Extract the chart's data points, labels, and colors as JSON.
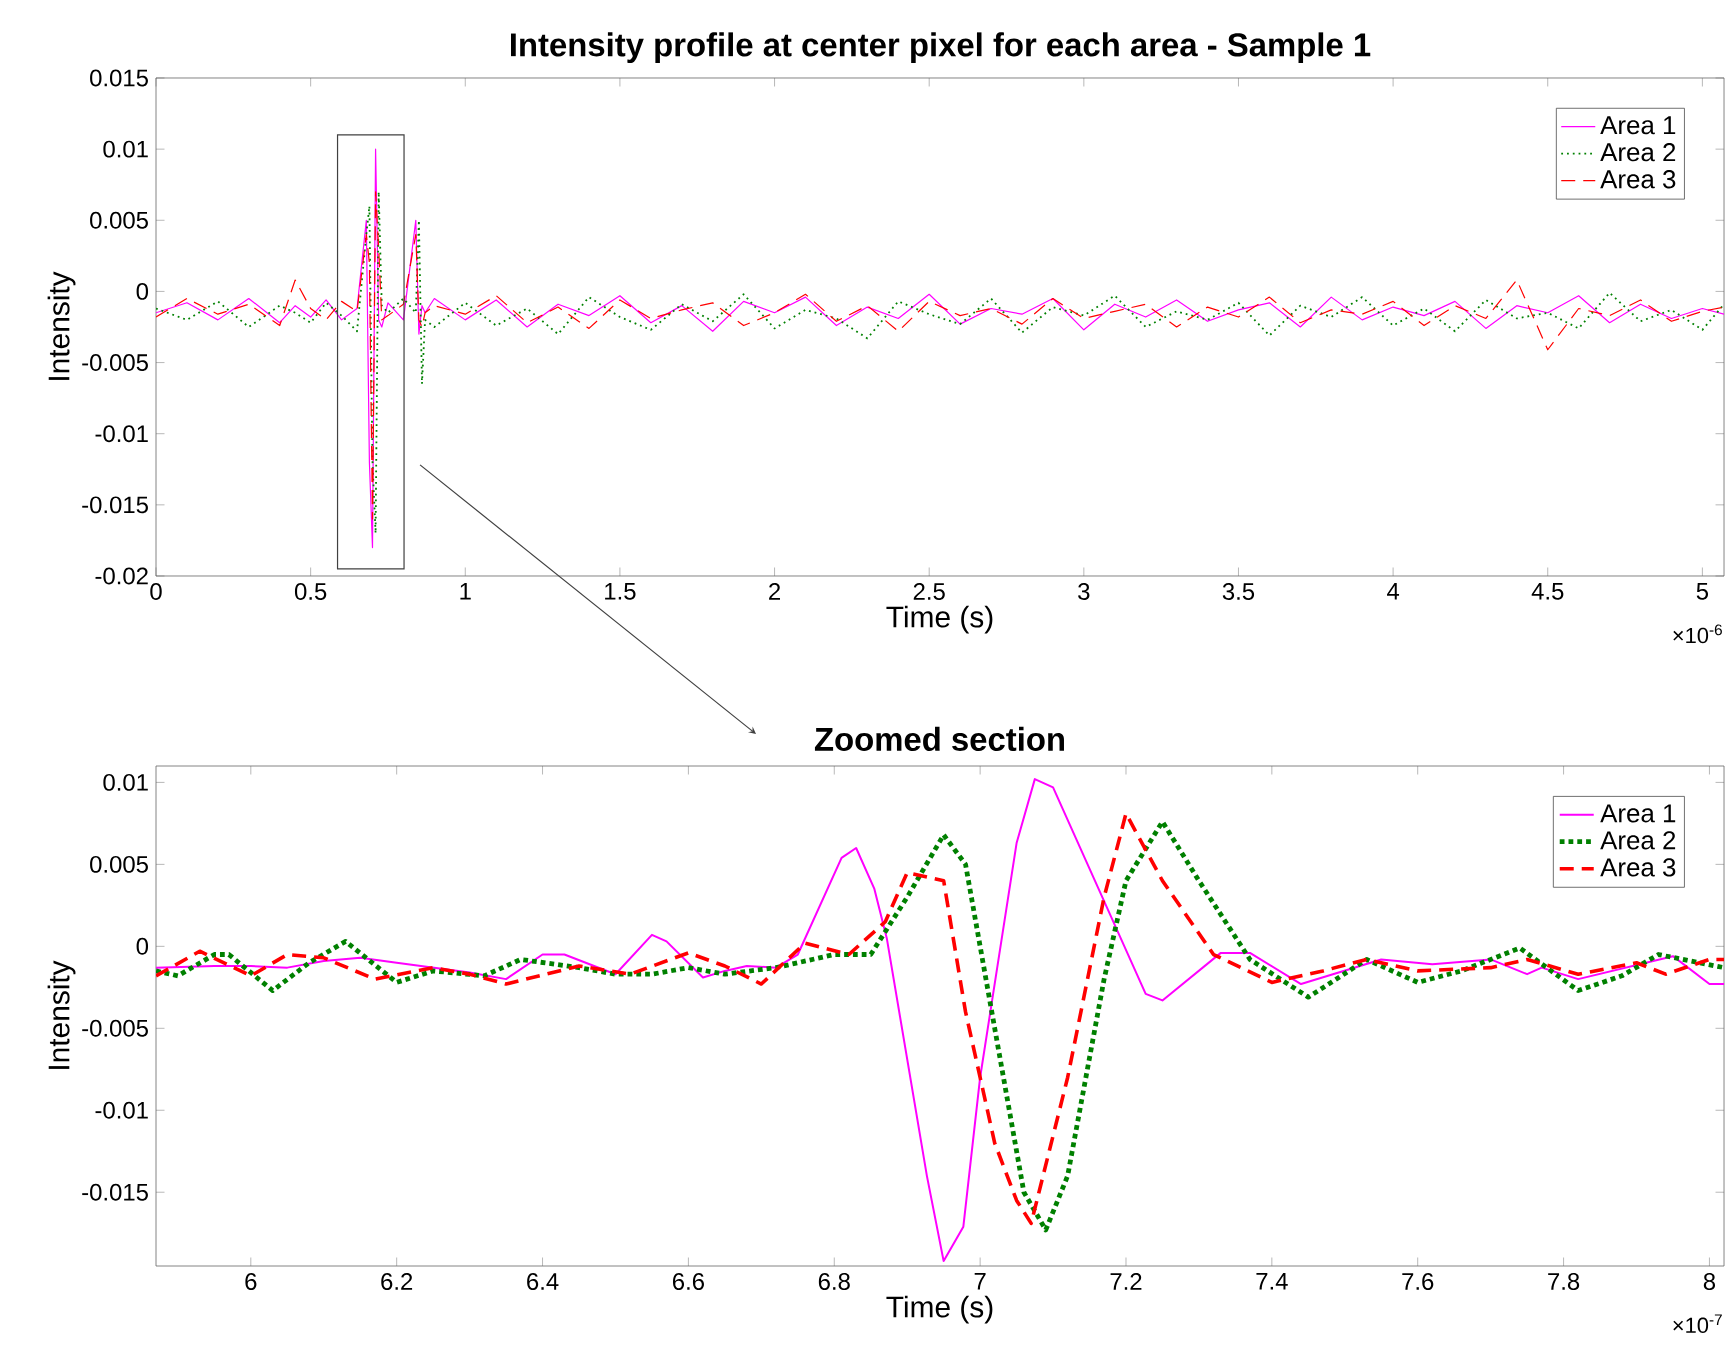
{
  "chart_data": [
    {
      "type": "line",
      "title": "Intensity profile at center pixel for each area - Sample 1",
      "xlabel": "Time (s)",
      "ylabel": "Intensity",
      "legend": "top right",
      "annotations": [
        "×10$^{-6}$"
      ],
      "xlim": [
        0,
        5.07
      ],
      "ylim": [
        -0.02,
        0.015
      ],
      "xticks": [
        0,
        0.5,
        1,
        1.5,
        2,
        2.5,
        3,
        3.5,
        4,
        4.5,
        5
      ],
      "yticks": [
        -0.02,
        -0.015,
        -0.01,
        -0.005,
        0,
        0.005,
        0.01,
        0.015
      ],
      "x": [
        0,
        0.1,
        0.2,
        0.3,
        0.4,
        0.45,
        0.5,
        0.55,
        0.6,
        0.65,
        0.68,
        0.69,
        0.7,
        0.71,
        0.72,
        0.73,
        0.75,
        0.8,
        0.84,
        0.85,
        0.86,
        0.87,
        0.9,
        1.0,
        1.1,
        1.2,
        1.3,
        1.4,
        1.5,
        1.6,
        1.7,
        1.8,
        1.9,
        2.0,
        2.1,
        2.2,
        2.3,
        2.4,
        2.5,
        2.6,
        2.7,
        2.8,
        2.9,
        3.0,
        3.1,
        3.2,
        3.3,
        3.4,
        3.5,
        3.6,
        3.7,
        3.8,
        3.9,
        4.0,
        4.1,
        4.2,
        4.3,
        4.4,
        4.5,
        4.6,
        4.7,
        4.8,
        4.9,
        5.0,
        5.07
      ],
      "series": [
        {
          "name": "Area 1",
          "color": "#ff00ff",
          "line_style": "solid",
          "values": [
            -0.0015,
            -0.0008,
            -0.002,
            -0.0005,
            -0.0022,
            -0.001,
            -0.0018,
            -0.0006,
            -0.002,
            -0.0012,
            0.005,
            -0.012,
            -0.018,
            0.01,
            -0.002,
            -0.0025,
            -0.0008,
            -0.002,
            0.005,
            -0.003,
            -0.001,
            -0.0015,
            -0.0005,
            -0.002,
            -0.0006,
            -0.0025,
            -0.0009,
            -0.0017,
            -0.0003,
            -0.0022,
            -0.001,
            -0.0028,
            -0.0007,
            -0.0015,
            -0.0004,
            -0.0024,
            -0.0011,
            -0.0019,
            -0.0002,
            -0.0023,
            -0.0012,
            -0.0016,
            -0.0005,
            -0.0027,
            -0.0009,
            -0.0018,
            -0.0006,
            -0.0021,
            -0.0013,
            -0.0008,
            -0.0025,
            -0.0004,
            -0.002,
            -0.0011,
            -0.0017,
            -0.0007,
            -0.0026,
            -0.001,
            -0.0015,
            -0.0003,
            -0.0022,
            -0.0009,
            -0.0019,
            -0.0012,
            -0.0016
          ]
        },
        {
          "name": "Area 2",
          "color": "#008000",
          "line_style": "dotted",
          "values": [
            -0.0012,
            -0.002,
            -0.0007,
            -0.0025,
            -0.001,
            -0.0015,
            -0.0022,
            -0.0008,
            -0.0017,
            -0.0028,
            0.004,
            0.006,
            -0.012,
            -0.017,
            0.007,
            -0.001,
            -0.0015,
            -0.0005,
            -0.0015,
            0.005,
            -0.0065,
            -0.002,
            -0.0025,
            -0.0008,
            -0.0024,
            -0.0012,
            -0.003,
            -0.0004,
            -0.0018,
            -0.0027,
            -0.0009,
            -0.0021,
            -0.0002,
            -0.0026,
            -0.0013,
            -0.0019,
            -0.0033,
            -0.0007,
            -0.0016,
            -0.0023,
            -0.0005,
            -0.0029,
            -0.0011,
            -0.0017,
            -0.0003,
            -0.0025,
            -0.0014,
            -0.002,
            -0.0008,
            -0.0031,
            -0.001,
            -0.0018,
            -0.0004,
            -0.0024,
            -0.0012,
            -0.0028,
            -0.0006,
            -0.0019,
            -0.0015,
            -0.0026,
            -0.0001,
            -0.0021,
            -0.0013,
            -0.0027,
            -0.0009
          ]
        },
        {
          "name": "Area 3",
          "color": "#ff0000",
          "line_style": "dashed",
          "values": [
            -0.0018,
            -0.0005,
            -0.0016,
            -0.0009,
            -0.0024,
            0.0008,
            -0.0012,
            -0.002,
            -0.0007,
            -0.0014,
            0.004,
            0.002,
            -0.016,
            0.007,
            0.003,
            -0.002,
            -0.0017,
            -0.0009,
            0.004,
            -0.002,
            -0.0025,
            -0.0015,
            -0.001,
            -0.0016,
            -0.0003,
            -0.0022,
            -0.0011,
            -0.0026,
            -0.0006,
            -0.0019,
            -0.0013,
            -0.0008,
            -0.0024,
            -0.0015,
            -0.0002,
            -0.0021,
            -0.001,
            -0.0028,
            -0.0007,
            -0.0017,
            -0.0012,
            -0.0023,
            -0.0005,
            -0.0019,
            -0.0014,
            -0.0009,
            -0.0025,
            -0.0011,
            -0.0018,
            -0.0004,
            -0.0022,
            -0.0013,
            -0.0016,
            -0.0007,
            -0.0024,
            -0.001,
            -0.0019,
            0.0008,
            -0.0041,
            -0.0012,
            -0.0017,
            -0.0006,
            -0.0021,
            -0.0014,
            -0.0011
          ]
        }
      ]
    },
    {
      "type": "line",
      "title": "Zoomed section",
      "xlabel": "Time (s)",
      "ylabel": "Intensity",
      "legend": "top right",
      "annotations": [
        "×10$^{-7}$"
      ],
      "xlim": [
        5.87,
        8.02
      ],
      "ylim": [
        -0.0195,
        0.011
      ],
      "xticks": [
        6,
        6.2,
        6.4,
        6.6,
        6.8,
        7,
        7.2,
        7.4,
        7.6,
        7.8,
        8
      ],
      "yticks": [
        -0.015,
        -0.01,
        -0.005,
        0,
        0.005,
        0.01
      ],
      "series": [
        {
          "name": "Area 1",
          "color": "#ff00ff",
          "line_style": "solid",
          "x": [
            5.87,
            5.95,
            6.0,
            6.05,
            6.1,
            6.15,
            6.2,
            6.3,
            6.35,
            6.4,
            6.43,
            6.5,
            6.55,
            6.57,
            6.62,
            6.65,
            6.68,
            6.72,
            6.75,
            6.81,
            6.83,
            6.855,
            6.872,
            6.927,
            6.95,
            6.977,
            7.0,
            7.05,
            7.075,
            7.1,
            7.227,
            7.25,
            7.33,
            7.37,
            7.44,
            7.55,
            7.62,
            7.7,
            7.75,
            7.77,
            7.82,
            7.95,
            8.0,
            8.02
          ],
          "values": [
            -0.0013,
            -0.0012,
            -0.0012,
            -0.0013,
            -0.0009,
            -0.0007,
            -0.001,
            -0.0016,
            -0.002,
            -0.0005,
            -0.0005,
            -0.0017,
            0.0007,
            0.0003,
            -0.0019,
            -0.0015,
            -0.0012,
            -0.0013,
            -0.0005,
            0.0054,
            0.006,
            0.0035,
            0.0005,
            -0.014,
            -0.0192,
            -0.0171,
            -0.008,
            0.0063,
            0.0102,
            0.0097,
            -0.0029,
            -0.0033,
            -0.0004,
            -0.0004,
            -0.0023,
            -0.0008,
            -0.0011,
            -0.0008,
            -0.0017,
            -0.0013,
            -0.002,
            -0.0006,
            -0.0023,
            -0.0023
          ]
        },
        {
          "name": "Area 2",
          "color": "#008000",
          "line_style": "dotted",
          "x": [
            5.87,
            5.9,
            5.95,
            5.97,
            6.03,
            6.08,
            6.13,
            6.2,
            6.25,
            6.32,
            6.37,
            6.45,
            6.5,
            6.55,
            6.6,
            6.65,
            6.72,
            6.8,
            6.85,
            6.9,
            6.95,
            6.98,
            7.02,
            7.06,
            7.09,
            7.12,
            7.17,
            7.2,
            7.25,
            7.3,
            7.37,
            7.45,
            7.53,
            7.6,
            7.66,
            7.74,
            7.82,
            7.88,
            7.93,
            8.02
          ],
          "values": [
            -0.0015,
            -0.0018,
            -0.0005,
            -0.0005,
            -0.0027,
            -0.001,
            0.0003,
            -0.0022,
            -0.0015,
            -0.0018,
            -0.0008,
            -0.0013,
            -0.0017,
            -0.0017,
            -0.0013,
            -0.0017,
            -0.0013,
            -0.0005,
            -0.0005,
            0.003,
            0.0068,
            0.005,
            -0.005,
            -0.015,
            -0.0173,
            -0.014,
            -0.002,
            0.004,
            0.0076,
            0.004,
            -0.0008,
            -0.0031,
            -0.0008,
            -0.0022,
            -0.0015,
            -0.0001,
            -0.0027,
            -0.0018,
            -0.0005,
            -0.0013
          ]
        },
        {
          "name": "Area 3",
          "color": "#ff0000",
          "line_style": "dashed",
          "x": [
            5.87,
            5.93,
            6.0,
            6.05,
            6.1,
            6.17,
            6.25,
            6.3,
            6.35,
            6.45,
            6.52,
            6.6,
            6.65,
            6.7,
            6.76,
            6.82,
            6.87,
            6.9,
            6.95,
            6.98,
            7.02,
            7.05,
            7.07,
            7.12,
            7.17,
            7.2,
            7.25,
            7.32,
            7.4,
            7.47,
            7.53,
            7.6,
            7.7,
            7.75,
            7.82,
            7.9,
            7.94,
            8.0,
            8.02
          ],
          "values": [
            -0.0018,
            -0.0003,
            -0.0018,
            -0.0005,
            -0.0007,
            -0.002,
            -0.0013,
            -0.0017,
            -0.0023,
            -0.0012,
            -0.0017,
            -0.0004,
            -0.0012,
            -0.0023,
            0.0002,
            -0.0005,
            0.0015,
            0.0045,
            0.004,
            -0.004,
            -0.012,
            -0.0155,
            -0.0169,
            -0.008,
            0.003,
            0.0081,
            0.004,
            -0.0005,
            -0.0022,
            -0.0015,
            -0.0008,
            -0.0015,
            -0.0013,
            -0.0008,
            -0.0017,
            -0.001,
            -0.0017,
            -0.0008,
            -0.0008
          ]
        }
      ]
    }
  ]
}
